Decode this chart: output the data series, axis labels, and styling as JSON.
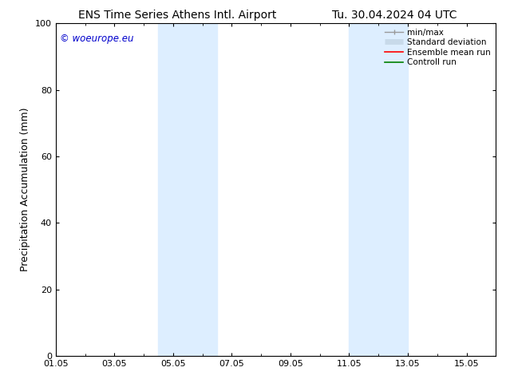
{
  "title_left": "ENS Time Series Athens Intl. Airport",
  "title_right": "Tu. 30.04.2024 04 UTC",
  "ylabel": "Precipitation Accumulation (mm)",
  "watermark": "© woeurope.eu",
  "ylim": [
    0,
    100
  ],
  "yticks": [
    0,
    20,
    40,
    60,
    80,
    100
  ],
  "xlim": [
    0,
    15
  ],
  "xtick_labels": [
    "01.05",
    "03.05",
    "05.05",
    "07.05",
    "09.05",
    "11.05",
    "13.05",
    "15.05"
  ],
  "xtick_positions": [
    0,
    2,
    4,
    6,
    8,
    10,
    12,
    14
  ],
  "shaded_bands": [
    {
      "xstart": 3.5,
      "xend": 5.5
    },
    {
      "xstart": 10.0,
      "xend": 12.0
    }
  ],
  "shade_color": "#ddeeff",
  "background_color": "#ffffff",
  "legend_entries": [
    {
      "label": "min/max",
      "color": "#999999",
      "lw": 1.0
    },
    {
      "label": "Standard deviation",
      "color": "#c8daea",
      "lw": 5
    },
    {
      "label": "Ensemble mean run",
      "color": "#ff0000",
      "lw": 1.2
    },
    {
      "label": "Controll run",
      "color": "#008000",
      "lw": 1.2
    }
  ],
  "watermark_color": "#0000cc",
  "title_fontsize": 10,
  "ylabel_fontsize": 9,
  "tick_fontsize": 8,
  "legend_fontsize": 7.5,
  "watermark_fontsize": 8.5
}
